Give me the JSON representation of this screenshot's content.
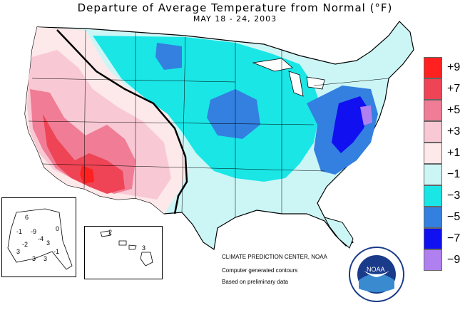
{
  "title": "Departure of Average Temperature from Normal (°F)",
  "subtitle": "MAY 18 - 24, 2003",
  "legend": [
    {
      "label": "+9",
      "color": "#ff2020"
    },
    {
      "label": "+7",
      "color": "#ee4455"
    },
    {
      "label": "+5",
      "color": "#f07d95"
    },
    {
      "label": "+3",
      "color": "#f8c9d4"
    },
    {
      "label": "+1",
      "color": "#fde8ea"
    },
    {
      "label": "−1",
      "color": "#ccf6f6"
    },
    {
      "label": "−3",
      "color": "#1ae6e6"
    },
    {
      "label": "−5",
      "color": "#3380e0"
    },
    {
      "label": "−7",
      "color": "#1010f0"
    },
    {
      "label": "−9",
      "color": "#b07ff0"
    }
  ],
  "credits": {
    "center": "CLIMATE PREDICTION CENTER, NOAA",
    "line1": "Computer generated contours",
    "line2": "Based on preliminary data"
  },
  "alaska_labels": [
    "6",
    "-1",
    "-9",
    "-4",
    "-2",
    "3",
    "0",
    "3",
    "-1",
    "3",
    "3"
  ],
  "hawaii_labels": [
    "2",
    "3"
  ],
  "logo_text": "NOAA"
}
